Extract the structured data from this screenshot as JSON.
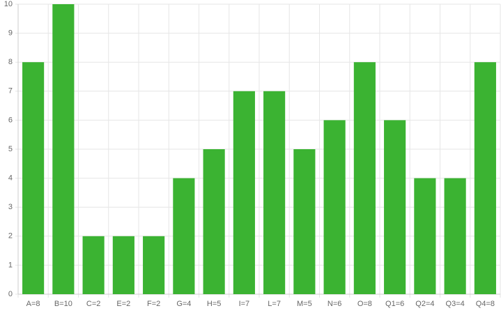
{
  "chart_data": {
    "type": "bar",
    "categories": [
      "A=8",
      "B=10",
      "C=2",
      "E=2",
      "F=2",
      "G=4",
      "H=5",
      "I=7",
      "L=7",
      "M=5",
      "N=6",
      "O=8",
      "Q1=6",
      "Q2=4",
      "Q3=4",
      "Q4=8"
    ],
    "values": [
      8,
      10,
      2,
      2,
      2,
      4,
      5,
      7,
      7,
      5,
      6,
      8,
      6,
      4,
      4,
      8
    ],
    "color": "#3bb332",
    "ylim": [
      0,
      10
    ],
    "yticks": [
      0,
      1,
      2,
      3,
      4,
      5,
      6,
      7,
      8,
      9,
      10
    ],
    "grid": true
  }
}
